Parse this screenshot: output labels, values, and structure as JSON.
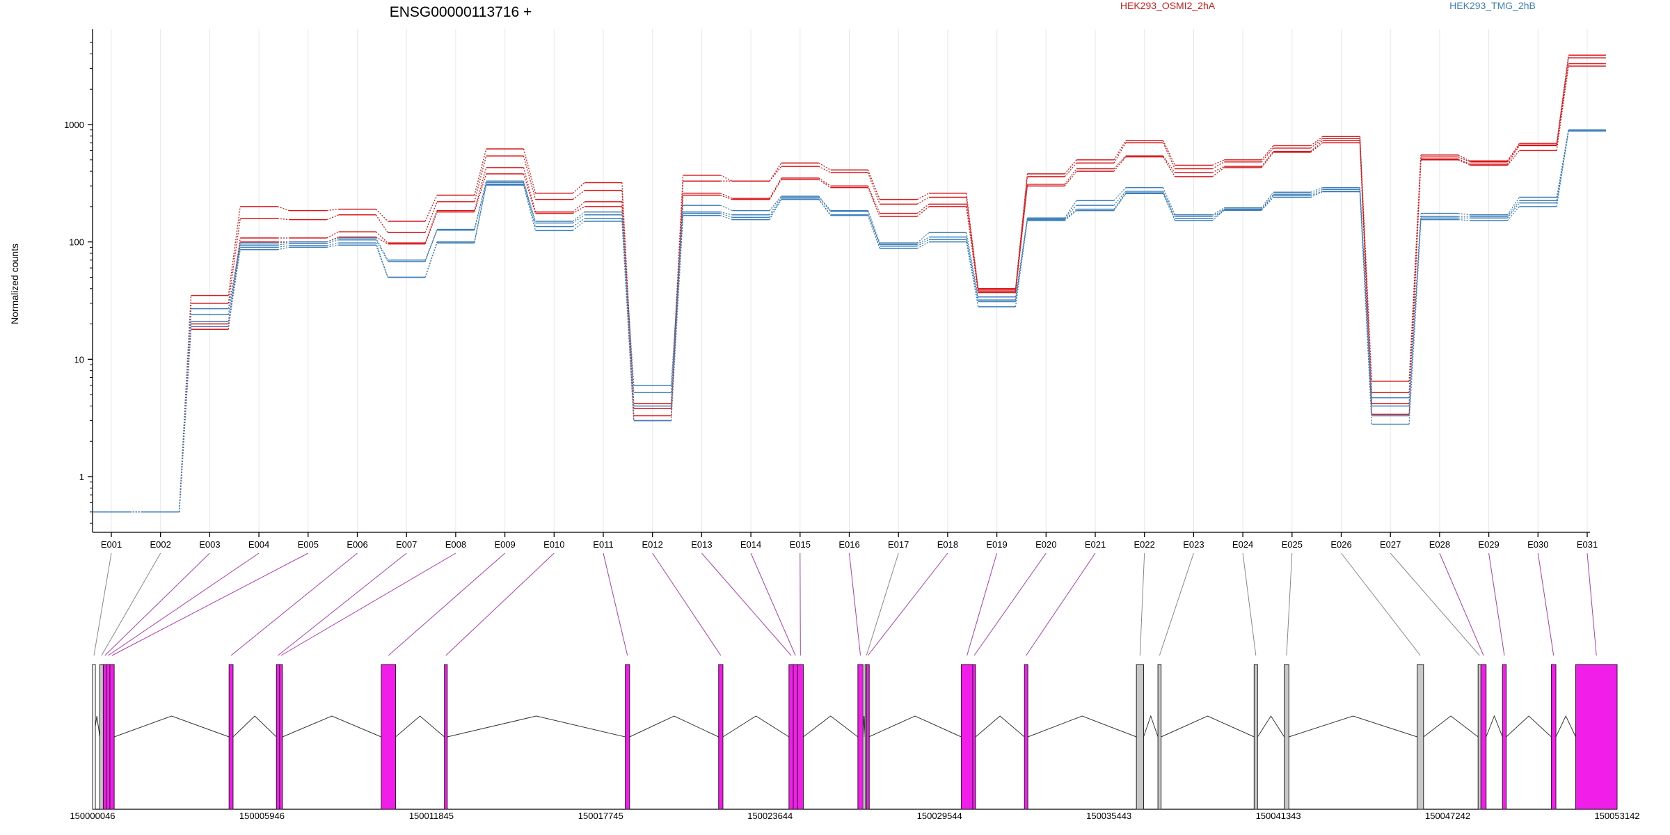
{
  "title": "ENSG00000113716 +",
  "legend": {
    "placement": "top",
    "entries": [
      {
        "name": "HEK293_OSMI2_2hA",
        "color": "#d7191c"
      },
      {
        "name": "HEK293_TMG_2hB",
        "color": "#3d7fb8"
      }
    ]
  },
  "chart_data": {
    "type": "line",
    "title": "ENSG00000113716 +",
    "ylabel": "Normalized counts",
    "yscale": "log",
    "ylim": [
      0.35,
      5500
    ],
    "yticks": [
      1,
      10,
      100,
      1000
    ],
    "ytick_labels": [
      "1",
      "10",
      "100",
      "1000"
    ],
    "grid": "vertical",
    "categories": [
      "E001",
      "E002",
      "E003",
      "E004",
      "E005",
      "E006",
      "E007",
      "E008",
      "E009",
      "E010",
      "E011",
      "E012",
      "E013",
      "E014",
      "E015",
      "E016",
      "E017",
      "E018",
      "E019",
      "E020",
      "E021",
      "E022",
      "E023",
      "E024",
      "E025",
      "E026",
      "E027",
      "E028",
      "E029",
      "E030",
      "E031"
    ],
    "series": [
      {
        "name": "HEK293_OSMI2_2hA",
        "color": "#d7191c",
        "values": [
          0.5,
          0.5,
          35,
          200,
          185,
          190,
          150,
          250,
          620,
          260,
          320,
          4.2,
          370,
          330,
          470,
          410,
          230,
          260,
          40,
          380,
          500,
          730,
          450,
          500,
          660,
          790,
          6.5,
          550,
          490,
          690,
          3900
        ]
      },
      {
        "name": "HEK293_OSMI2_2hA",
        "color": "#d7191c",
        "values": [
          0.5,
          0.5,
          30,
          158,
          155,
          170,
          120,
          220,
          540,
          230,
          275,
          3.8,
          330,
          330,
          440,
          390,
          210,
          240,
          39,
          360,
          470,
          700,
          420,
          480,
          630,
          760,
          5.2,
          530,
          480,
          670,
          3700
        ]
      },
      {
        "name": "HEK293_OSMI2_2hA",
        "color": "#d7191c",
        "values": [
          0.5,
          0.5,
          20,
          108,
          108,
          122,
          98,
          185,
          430,
          180,
          220,
          3.3,
          260,
          235,
          350,
          300,
          175,
          210,
          38,
          310,
          420,
          540,
          390,
          440,
          590,
          730,
          4.2,
          510,
          460,
          660,
          3300
        ]
      },
      {
        "name": "HEK293_OSMI2_2hA",
        "color": "#d7191c",
        "values": [
          0.5,
          0.5,
          18,
          100,
          100,
          110,
          96,
          180,
          380,
          175,
          200,
          3.0,
          250,
          230,
          340,
          290,
          165,
          200,
          37,
          300,
          400,
          530,
          360,
          430,
          580,
          700,
          3.4,
          500,
          450,
          600,
          3150
        ]
      },
      {
        "name": "HEK293_TMG_2hB",
        "color": "#3d7fb8",
        "values": [
          0.5,
          0.5,
          27,
          98,
          100,
          108,
          70,
          128,
          330,
          150,
          180,
          6.0,
          205,
          185,
          245,
          185,
          98,
          120,
          34,
          160,
          225,
          290,
          170,
          195,
          265,
          290,
          4.7,
          175,
          170,
          240,
          900
        ]
      },
      {
        "name": "HEK293_TMG_2hB",
        "color": "#3d7fb8",
        "values": [
          0.5,
          0.5,
          24,
          94,
          97,
          104,
          68,
          126,
          320,
          145,
          170,
          5.2,
          180,
          170,
          240,
          182,
          95,
          110,
          32,
          158,
          205,
          270,
          165,
          190,
          255,
          280,
          4.0,
          165,
          165,
          225,
          890
        ]
      },
      {
        "name": "HEK293_TMG_2hB",
        "color": "#3d7fb8",
        "values": [
          0.5,
          0.5,
          21,
          90,
          93,
          98,
          50,
          100,
          310,
          135,
          158,
          4.0,
          175,
          162,
          232,
          170,
          92,
          105,
          31,
          155,
          190,
          262,
          158,
          188,
          248,
          270,
          3.3,
          160,
          160,
          215,
          885
        ]
      },
      {
        "name": "HEK293_TMG_2hB",
        "color": "#3d7fb8",
        "values": [
          0.5,
          0.5,
          19,
          86,
          90,
          94,
          50,
          98,
          305,
          125,
          150,
          3.0,
          168,
          155,
          230,
          168,
          88,
          100,
          28,
          152,
          185,
          258,
          152,
          186,
          240,
          268,
          2.8,
          155,
          152,
          200,
          880
        ]
      }
    ],
    "gene_model": {
      "x_ticks": [
        150000046,
        150005946,
        150011845,
        150017745,
        150023644,
        150029544,
        150035443,
        150041343,
        150047242,
        150053142
      ],
      "x_tick_labels": [
        "150000046",
        "150005946",
        "150011845",
        "150017745",
        "150023644",
        "150029544",
        "150035443",
        "150041343",
        "150047242",
        "150053142"
      ],
      "exon_colors": {
        "significant": "#f01ee8",
        "not_significant": "#c8c8c8",
        "unknown": "#ffffff"
      },
      "exons": [
        {
          "id": "E001",
          "start": 150000046,
          "end": 150000090,
          "sig": "none"
        },
        {
          "id": "E002",
          "start": 150000300,
          "end": 150000420,
          "sig": "no"
        },
        {
          "id": "E003",
          "start": 150000420,
          "end": 150000530,
          "sig": "yes"
        },
        {
          "id": "E004",
          "start": 150000530,
          "end": 150000650,
          "sig": "yes"
        },
        {
          "id": "E005",
          "start": 150000650,
          "end": 150000800,
          "sig": "yes"
        },
        {
          "id": "E006",
          "start": 150004800,
          "end": 150004940,
          "sig": "yes"
        },
        {
          "id": "E007",
          "start": 150006450,
          "end": 150006560,
          "sig": "yes"
        },
        {
          "id": "E008",
          "start": 150006560,
          "end": 150006660,
          "sig": "yes"
        },
        {
          "id": "E009",
          "start": 150010100,
          "end": 150010600,
          "sig": "yes"
        },
        {
          "id": "E010",
          "start": 150012300,
          "end": 150012400,
          "sig": "yes"
        },
        {
          "id": "E011",
          "start": 150018600,
          "end": 150018750,
          "sig": "yes"
        },
        {
          "id": "E012",
          "start": 150021850,
          "end": 150022000,
          "sig": "yes"
        },
        {
          "id": "E013",
          "start": 150024300,
          "end": 150024450,
          "sig": "yes"
        },
        {
          "id": "E014",
          "start": 150024450,
          "end": 150024600,
          "sig": "yes"
        },
        {
          "id": "E015",
          "start": 150024600,
          "end": 150024800,
          "sig": "yes"
        },
        {
          "id": "E016",
          "start": 150026700,
          "end": 150026880,
          "sig": "yes"
        },
        {
          "id": "E017",
          "start": 150026950,
          "end": 150027000,
          "sig": "no"
        },
        {
          "id": "E018",
          "start": 150027000,
          "end": 150027080,
          "sig": "yes"
        },
        {
          "id": "E019",
          "start": 150030300,
          "end": 150030700,
          "sig": "yes"
        },
        {
          "id": "E020",
          "start": 150030700,
          "end": 150030800,
          "sig": "yes"
        },
        {
          "id": "E021",
          "start": 150032500,
          "end": 150032620,
          "sig": "yes"
        },
        {
          "id": "E022",
          "start": 150036400,
          "end": 150036650,
          "sig": "no"
        },
        {
          "id": "E023",
          "start": 150037150,
          "end": 150037260,
          "sig": "no"
        },
        {
          "id": "E024",
          "start": 150040500,
          "end": 150040620,
          "sig": "no"
        },
        {
          "id": "E025",
          "start": 150041550,
          "end": 150041710,
          "sig": "no"
        },
        {
          "id": "E026",
          "start": 150046180,
          "end": 150046400,
          "sig": "no"
        },
        {
          "id": "E027",
          "start": 150048300,
          "end": 150048400,
          "sig": "no"
        },
        {
          "id": "E028",
          "start": 150048400,
          "end": 150048580,
          "sig": "yes"
        },
        {
          "id": "E029",
          "start": 150049150,
          "end": 150049280,
          "sig": "yes"
        },
        {
          "id": "E030",
          "start": 150050850,
          "end": 150051010,
          "sig": "yes"
        },
        {
          "id": "E031",
          "start": 150051700,
          "end": 150053142,
          "sig": "yes"
        }
      ]
    }
  }
}
